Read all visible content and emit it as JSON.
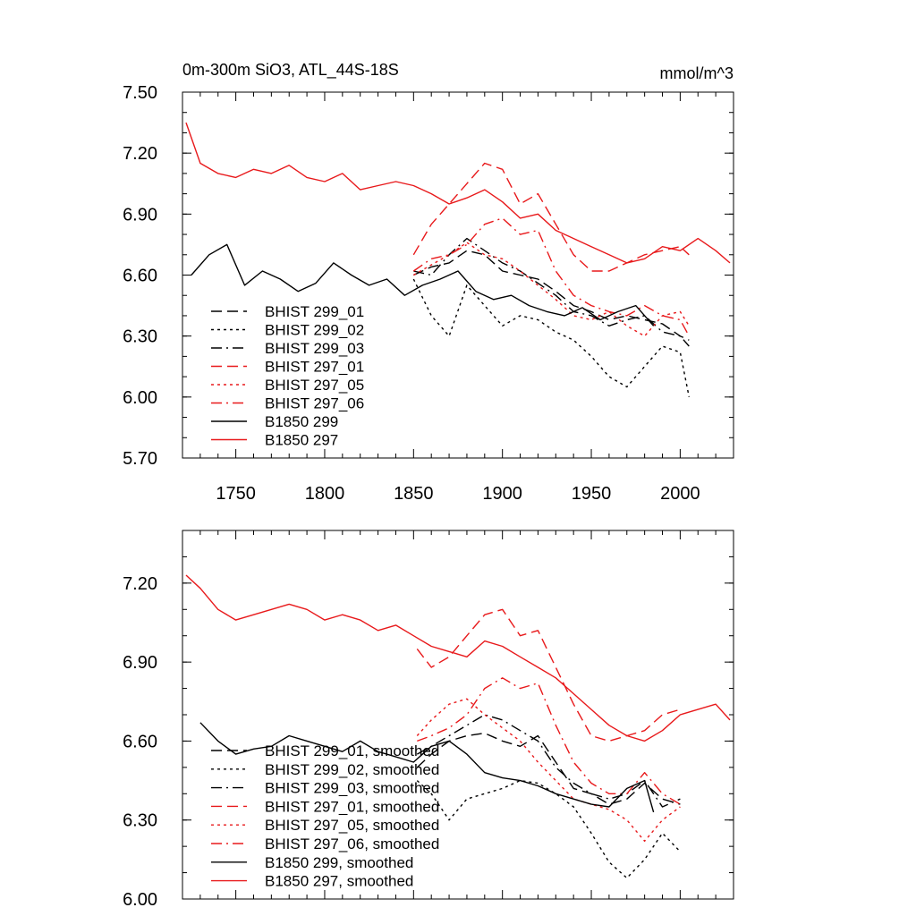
{
  "chart_data": [
    {
      "type": "line",
      "title_left": "0m-300m SiO3, ATL_44S-18S",
      "title_right": "mmol/m^3",
      "xlim": [
        1720,
        2030
      ],
      "ylim": [
        5.7,
        7.5
      ],
      "xticks": [
        1750,
        1800,
        1850,
        1900,
        1950,
        2000
      ],
      "yticks": [
        5.7,
        6.0,
        6.3,
        6.6,
        6.9,
        7.2,
        7.5
      ],
      "ytick_labels": [
        "5.70",
        "6.00",
        "6.30",
        "6.60",
        "6.90",
        "7.20",
        "7.50"
      ],
      "legend": [
        "BHIST 299_01",
        "BHIST 299_02",
        "BHIST 299_03",
        "BHIST 297_01",
        "BHIST 297_05",
        "BHIST 297_06",
        "B1850 299",
        "B1850 297"
      ],
      "series": [
        {
          "name": "BHIST 299_01",
          "color": "#000000",
          "dash": "long",
          "x": [
            1850,
            1860,
            1870,
            1880,
            1890,
            1900,
            1910,
            1920,
            1930,
            1940,
            1950,
            1960,
            1970,
            1980,
            1990,
            2000,
            2005
          ],
          "y": [
            6.6,
            6.64,
            6.66,
            6.72,
            6.7,
            6.62,
            6.6,
            6.58,
            6.52,
            6.45,
            6.42,
            6.38,
            6.4,
            6.38,
            6.36,
            6.3,
            6.28
          ]
        },
        {
          "name": "BHIST 299_02",
          "color": "#000000",
          "dash": "dot",
          "x": [
            1850,
            1860,
            1870,
            1880,
            1890,
            1900,
            1910,
            1920,
            1930,
            1940,
            1950,
            1960,
            1970,
            1980,
            1990,
            2000,
            2005
          ],
          "y": [
            6.58,
            6.4,
            6.3,
            6.55,
            6.45,
            6.35,
            6.4,
            6.38,
            6.32,
            6.28,
            6.2,
            6.1,
            6.05,
            6.15,
            6.25,
            6.22,
            6.0
          ]
        },
        {
          "name": "BHIST 299_03",
          "color": "#000000",
          "dash": "dashdot",
          "x": [
            1850,
            1860,
            1870,
            1880,
            1890,
            1900,
            1910,
            1920,
            1930,
            1940,
            1950,
            1960,
            1970,
            1980,
            1990,
            2000,
            2005
          ],
          "y": [
            6.62,
            6.6,
            6.7,
            6.78,
            6.72,
            6.66,
            6.62,
            6.56,
            6.5,
            6.42,
            6.4,
            6.35,
            6.38,
            6.4,
            6.32,
            6.3,
            6.25
          ]
        },
        {
          "name": "BHIST 297_01",
          "color": "#e8191b",
          "dash": "long",
          "x": [
            1850,
            1860,
            1870,
            1880,
            1890,
            1900,
            1910,
            1920,
            1930,
            1940,
            1950,
            1960,
            1970,
            1980,
            1990,
            2000,
            2005
          ],
          "y": [
            6.7,
            6.85,
            6.95,
            7.05,
            7.15,
            7.12,
            6.95,
            7.0,
            6.85,
            6.7,
            6.62,
            6.62,
            6.66,
            6.7,
            6.72,
            6.74,
            6.7
          ]
        },
        {
          "name": "BHIST 297_05",
          "color": "#e8191b",
          "dash": "dot",
          "x": [
            1850,
            1860,
            1870,
            1880,
            1890,
            1900,
            1910,
            1920,
            1930,
            1940,
            1950,
            1960,
            1970,
            1980,
            1990,
            2000,
            2005
          ],
          "y": [
            6.6,
            6.65,
            6.7,
            6.76,
            6.7,
            6.68,
            6.62,
            6.55,
            6.48,
            6.4,
            6.38,
            6.42,
            6.35,
            6.3,
            6.4,
            6.42,
            6.35
          ]
        },
        {
          "name": "BHIST 297_06",
          "color": "#e8191b",
          "dash": "dashdot",
          "x": [
            1850,
            1860,
            1870,
            1880,
            1890,
            1900,
            1910,
            1920,
            1930,
            1940,
            1950,
            1960,
            1970,
            1980,
            1990,
            2000,
            2005
          ],
          "y": [
            6.62,
            6.68,
            6.7,
            6.75,
            6.85,
            6.88,
            6.8,
            6.82,
            6.62,
            6.5,
            6.45,
            6.42,
            6.4,
            6.45,
            6.4,
            6.38,
            6.3
          ]
        },
        {
          "name": "B1850 299",
          "color": "#000000",
          "dash": "solid",
          "x": [
            1725,
            1735,
            1745,
            1755,
            1765,
            1775,
            1785,
            1795,
            1805,
            1815,
            1825,
            1835,
            1845,
            1855,
            1865,
            1875,
            1885,
            1895,
            1905,
            1915,
            1925,
            1935,
            1945,
            1955,
            1965,
            1975,
            1985
          ],
          "y": [
            6.6,
            6.7,
            6.75,
            6.55,
            6.62,
            6.58,
            6.52,
            6.56,
            6.66,
            6.6,
            6.55,
            6.58,
            6.5,
            6.55,
            6.58,
            6.62,
            6.52,
            6.48,
            6.5,
            6.45,
            6.42,
            6.4,
            6.44,
            6.38,
            6.42,
            6.45,
            6.35
          ]
        },
        {
          "name": "B1850 297",
          "color": "#e8191b",
          "dash": "solid",
          "x": [
            1722,
            1730,
            1740,
            1750,
            1760,
            1770,
            1780,
            1790,
            1800,
            1810,
            1820,
            1830,
            1840,
            1850,
            1860,
            1870,
            1880,
            1890,
            1900,
            1910,
            1920,
            1930,
            1940,
            1950,
            1960,
            1970,
            1980,
            1990,
            2000,
            2010,
            2020,
            2028
          ],
          "y": [
            7.35,
            7.15,
            7.1,
            7.08,
            7.12,
            7.1,
            7.14,
            7.08,
            7.06,
            7.1,
            7.02,
            7.04,
            7.06,
            7.04,
            7.0,
            6.95,
            6.98,
            7.02,
            6.96,
            6.88,
            6.9,
            6.82,
            6.78,
            6.74,
            6.7,
            6.66,
            6.68,
            6.74,
            6.72,
            6.78,
            6.72,
            6.66
          ]
        }
      ]
    },
    {
      "type": "line",
      "title_left": "",
      "title_right": "",
      "xlim": [
        1720,
        2030
      ],
      "ylim": [
        6.0,
        7.4
      ],
      "xticks": [
        1750,
        1800,
        1850,
        1900,
        1950,
        2000
      ],
      "yticks": [
        6.0,
        6.3,
        6.6,
        6.9,
        7.2
      ],
      "ytick_labels": [
        "6.00",
        "6.30",
        "6.60",
        "6.90",
        "7.20"
      ],
      "legend": [
        "BHIST 299_01, smoothed",
        "BHIST 299_02, smoothed",
        "BHIST 299_03, smoothed",
        "BHIST 297_01, smoothed",
        "BHIST 297_05, smoothed",
        "BHIST 297_06, smoothed",
        "B1850 299, smoothed",
        "B1850 297, smoothed"
      ],
      "series": [
        {
          "name": "BHIST 299_01, smoothed",
          "color": "#000000",
          "dash": "long",
          "x": [
            1852,
            1860,
            1870,
            1880,
            1890,
            1900,
            1910,
            1920,
            1930,
            1940,
            1950,
            1960,
            1970,
            1980,
            1990,
            2000
          ],
          "y": [
            6.5,
            6.55,
            6.6,
            6.62,
            6.63,
            6.6,
            6.58,
            6.62,
            6.52,
            6.42,
            6.4,
            6.36,
            6.38,
            6.44,
            6.38,
            6.36
          ]
        },
        {
          "name": "BHIST 299_02, smoothed",
          "color": "#000000",
          "dash": "dot",
          "x": [
            1852,
            1860,
            1870,
            1880,
            1890,
            1900,
            1910,
            1920,
            1930,
            1940,
            1950,
            1960,
            1970,
            1980,
            1990,
            2000
          ],
          "y": [
            6.45,
            6.4,
            6.3,
            6.38,
            6.4,
            6.42,
            6.45,
            6.44,
            6.4,
            6.35,
            6.25,
            6.14,
            6.08,
            6.15,
            6.25,
            6.18
          ]
        },
        {
          "name": "BHIST 299_03, smoothed",
          "color": "#000000",
          "dash": "dashdot",
          "x": [
            1852,
            1860,
            1870,
            1880,
            1890,
            1900,
            1910,
            1920,
            1930,
            1940,
            1950,
            1960,
            1970,
            1980,
            1990,
            2000
          ],
          "y": [
            6.55,
            6.58,
            6.62,
            6.66,
            6.7,
            6.68,
            6.64,
            6.6,
            6.5,
            6.44,
            6.4,
            6.38,
            6.4,
            6.45,
            6.35,
            6.38
          ]
        },
        {
          "name": "BHIST 297_01, smoothed",
          "color": "#e8191b",
          "dash": "long",
          "x": [
            1852,
            1860,
            1870,
            1880,
            1890,
            1900,
            1910,
            1920,
            1930,
            1940,
            1950,
            1960,
            1970,
            1980,
            1990,
            2000
          ],
          "y": [
            6.95,
            6.88,
            6.92,
            7.0,
            7.08,
            7.1,
            7.0,
            7.02,
            6.88,
            6.74,
            6.62,
            6.6,
            6.62,
            6.64,
            6.7,
            6.72
          ]
        },
        {
          "name": "BHIST 297_05, smoothed",
          "color": "#e8191b",
          "dash": "dot",
          "x": [
            1852,
            1860,
            1870,
            1880,
            1890,
            1900,
            1910,
            1920,
            1930,
            1940,
            1950,
            1960,
            1970,
            1980,
            1990,
            2000
          ],
          "y": [
            6.62,
            6.68,
            6.74,
            6.76,
            6.7,
            6.65,
            6.6,
            6.52,
            6.45,
            6.38,
            6.36,
            6.34,
            6.3,
            6.22,
            6.3,
            6.35
          ]
        },
        {
          "name": "BHIST 297_06, smoothed",
          "color": "#e8191b",
          "dash": "dashdot",
          "x": [
            1852,
            1860,
            1870,
            1880,
            1890,
            1900,
            1910,
            1920,
            1930,
            1940,
            1950,
            1960,
            1970,
            1980,
            1990,
            2000
          ],
          "y": [
            6.6,
            6.62,
            6.65,
            6.7,
            6.8,
            6.84,
            6.8,
            6.82,
            6.66,
            6.52,
            6.44,
            6.4,
            6.4,
            6.48,
            6.4,
            6.36
          ]
        },
        {
          "name": "B1850 299, smoothed",
          "color": "#000000",
          "dash": "solid",
          "x": [
            1730,
            1740,
            1750,
            1760,
            1770,
            1780,
            1790,
            1800,
            1810,
            1820,
            1830,
            1840,
            1850,
            1860,
            1870,
            1880,
            1890,
            1900,
            1910,
            1920,
            1930,
            1940,
            1950,
            1960,
            1970,
            1980,
            1985
          ],
          "y": [
            6.67,
            6.6,
            6.55,
            6.57,
            6.58,
            6.62,
            6.6,
            6.58,
            6.56,
            6.6,
            6.56,
            6.54,
            6.52,
            6.58,
            6.6,
            6.55,
            6.48,
            6.46,
            6.45,
            6.43,
            6.4,
            6.38,
            6.36,
            6.35,
            6.42,
            6.45,
            6.33
          ]
        },
        {
          "name": "B1850 297, smoothed",
          "color": "#e8191b",
          "dash": "solid",
          "x": [
            1722,
            1730,
            1740,
            1750,
            1760,
            1770,
            1780,
            1790,
            1800,
            1810,
            1820,
            1830,
            1840,
            1850,
            1860,
            1870,
            1880,
            1890,
            1900,
            1910,
            1920,
            1930,
            1940,
            1950,
            1960,
            1970,
            1980,
            1990,
            2000,
            2010,
            2020,
            2028
          ],
          "y": [
            7.23,
            7.18,
            7.1,
            7.06,
            7.08,
            7.1,
            7.12,
            7.1,
            7.06,
            7.08,
            7.06,
            7.02,
            7.04,
            7.0,
            6.96,
            6.94,
            6.92,
            6.98,
            6.96,
            6.92,
            6.88,
            6.84,
            6.78,
            6.72,
            6.66,
            6.62,
            6.6,
            6.64,
            6.7,
            6.72,
            6.74,
            6.68
          ]
        }
      ]
    }
  ]
}
